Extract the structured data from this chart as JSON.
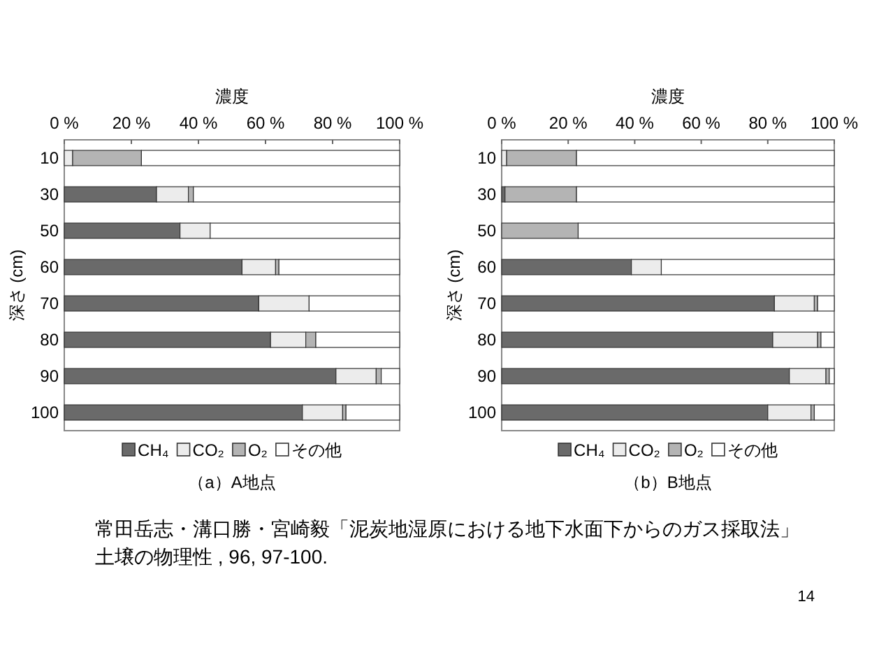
{
  "chart_data": [
    {
      "type": "bar",
      "orientation": "horizontal",
      "stacked": true,
      "title": "（a）A地点",
      "xlabel": "濃度",
      "ylabel": "深さ (cm)",
      "categories": [
        "10",
        "30",
        "50",
        "60",
        "70",
        "80",
        "90",
        "100"
      ],
      "series": [
        {
          "name": "CH₄",
          "color": "#6a6a6a",
          "values": [
            0,
            27.5,
            34.5,
            53,
            58,
            61.5,
            81,
            71
          ]
        },
        {
          "name": "CO₂",
          "color": "#ececec",
          "values": [
            2.5,
            9.5,
            9,
            10,
            15,
            10.5,
            12,
            12
          ]
        },
        {
          "name": "O₂",
          "color": "#b4b4b4",
          "values": [
            20.5,
            1.5,
            0,
            1,
            0,
            3,
            1.5,
            1
          ]
        },
        {
          "name": "その他",
          "color": "#ffffff",
          "values": [
            77,
            61.5,
            56.5,
            36,
            27,
            25,
            5.5,
            16
          ]
        }
      ],
      "xlim": [
        0,
        100
      ],
      "xticks": [
        {
          "value": 0,
          "label": "0 %"
        },
        {
          "value": 20,
          "label": "20 %"
        },
        {
          "value": 40,
          "label": "40 %"
        },
        {
          "value": 60,
          "label": "60 %"
        },
        {
          "value": 80,
          "label": "80 %"
        },
        {
          "value": 100,
          "label": "100 %"
        }
      ],
      "grid": false,
      "legend": "bottom"
    },
    {
      "type": "bar",
      "orientation": "horizontal",
      "stacked": true,
      "title": "（b）B地点",
      "xlabel": "濃度",
      "ylabel": "深さ (cm)",
      "categories": [
        "10",
        "30",
        "50",
        "60",
        "70",
        "80",
        "90",
        "100"
      ],
      "series": [
        {
          "name": "CH₄",
          "color": "#6a6a6a",
          "values": [
            0,
            1,
            0,
            39,
            82,
            81.5,
            86.5,
            80
          ]
        },
        {
          "name": "CO₂",
          "color": "#ececec",
          "values": [
            1.5,
            0,
            0,
            9,
            12,
            13.5,
            11,
            13
          ]
        },
        {
          "name": "O₂",
          "color": "#b4b4b4",
          "values": [
            21,
            21.5,
            23,
            0,
            1,
            1,
            1,
            1
          ]
        },
        {
          "name": "その他",
          "color": "#ffffff",
          "values": [
            77.5,
            77.5,
            77,
            52,
            5,
            4,
            1.5,
            6
          ]
        }
      ],
      "xlim": [
        0,
        100
      ],
      "xticks": [
        {
          "value": 0,
          "label": "0 %"
        },
        {
          "value": 20,
          "label": "20 %"
        },
        {
          "value": 40,
          "label": "40 %"
        },
        {
          "value": 60,
          "label": "60 %"
        },
        {
          "value": 80,
          "label": "80 %"
        },
        {
          "value": 100,
          "label": "100 %"
        }
      ],
      "grid": false,
      "legend": "bottom"
    },
    {
      "type": "other",
      "annotations": [
        "常田岳志・溝口勝・宮崎毅「泥炭地湿原における地下水面下からのガス採取法」",
        "土壌の物理性 , 96, 97-100.",
        "14"
      ]
    }
  ]
}
